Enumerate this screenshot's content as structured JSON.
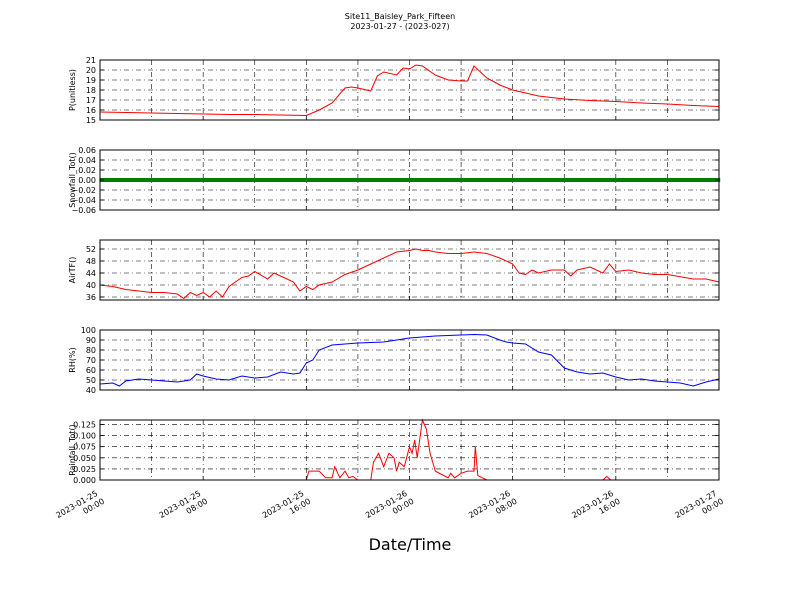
{
  "header": {
    "title": "Site11_Baisley_Park_Fifteen",
    "subtitle": "2023-01-27 - (2023-027)"
  },
  "xlabel": "Date/Time",
  "x_ticks": [
    "2023-01-25 00:00",
    "2023-01-25 08:00",
    "2023-01-25 16:00",
    "2023-01-26 00:00",
    "2023-01-26 08:00",
    "2023-01-26 16:00",
    "2023-01-27 00:00"
  ],
  "chart_data": [
    {
      "type": "line",
      "ylabel": "P(unitless)",
      "color": "#ff0000",
      "xlim_hours": [
        0,
        48
      ],
      "ylim": [
        15,
        21
      ],
      "yticks": [
        "15",
        "16",
        "17",
        "18",
        "19",
        "20",
        "21"
      ],
      "grid": true,
      "x_hours": [
        0,
        2,
        4,
        6,
        8,
        10,
        12,
        14,
        16,
        17,
        18,
        19,
        19.5,
        20,
        21,
        21.5,
        22,
        23,
        23.5,
        24,
        24.5,
        25,
        26,
        27,
        28,
        28.5,
        29,
        30,
        31,
        32,
        33,
        34,
        36,
        38,
        40,
        42,
        44,
        46,
        48
      ],
      "values": [
        15.8,
        15.75,
        15.7,
        15.65,
        15.6,
        15.55,
        15.55,
        15.5,
        15.45,
        16.0,
        16.7,
        18.2,
        18.3,
        18.2,
        17.9,
        19.4,
        19.8,
        19.5,
        20.2,
        20.1,
        20.5,
        20.4,
        19.5,
        19.0,
        18.9,
        18.9,
        20.4,
        19.2,
        18.5,
        18.0,
        17.7,
        17.4,
        17.1,
        16.95,
        16.85,
        16.7,
        16.6,
        16.45,
        16.35
      ]
    },
    {
      "type": "scatter",
      "ylabel": "Snowfall_Tot()",
      "color": "#008000",
      "xlim_hours": [
        0,
        48
      ],
      "ylim": [
        -0.06,
        0.06
      ],
      "yticks": [
        "−0.06",
        "−0.04",
        "−0.02",
        "0.00",
        "0.02",
        "0.04",
        "0.06"
      ],
      "grid": true,
      "x_hours": [
        0,
        48
      ],
      "values": [
        0,
        0
      ],
      "note_series": "constant zero"
    },
    {
      "type": "line",
      "ylabel": "AirTF()",
      "color": "#ff0000",
      "xlim_hours": [
        0,
        48
      ],
      "ylim": [
        35,
        55
      ],
      "yticks": [
        "36",
        "40",
        "44",
        "48",
        "52"
      ],
      "grid": true,
      "x_hours": [
        0,
        1,
        2,
        3,
        4,
        5,
        6,
        6.5,
        7,
        7.5,
        8,
        8.5,
        9,
        9.5,
        10,
        10.5,
        11,
        11.5,
        12,
        13,
        13.5,
        14,
        14.5,
        15,
        15.5,
        16,
        16.5,
        17,
        18,
        19,
        20,
        21,
        22,
        23,
        24,
        24.5,
        25,
        25.5,
        26,
        27,
        28,
        29,
        30,
        31,
        32,
        32.5,
        33,
        33.5,
        34,
        35,
        36,
        36.5,
        37,
        38,
        39,
        39.5,
        40,
        41,
        42,
        43,
        44,
        46,
        47,
        48
      ],
      "values": [
        40,
        39.5,
        38.5,
        38,
        37.5,
        37.5,
        37,
        35.5,
        37.5,
        36.5,
        37.5,
        36,
        38,
        36,
        39.5,
        41,
        42.5,
        43,
        44.5,
        42,
        44,
        43,
        42,
        41,
        38,
        39.5,
        38.5,
        40,
        41,
        43.5,
        45,
        47,
        49,
        51,
        51.5,
        52,
        51.5,
        51.5,
        51,
        50.5,
        50.5,
        51,
        50.5,
        49,
        47,
        44,
        43.5,
        45,
        44,
        45,
        45,
        43,
        45,
        46,
        44,
        47,
        44.5,
        45,
        44,
        43.5,
        43.5,
        42,
        42,
        41
      ]
    },
    {
      "type": "line",
      "ylabel": "RH(%)",
      "color": "#0000ff",
      "xlim_hours": [
        0,
        48
      ],
      "ylim": [
        40,
        100
      ],
      "yticks": [
        "40",
        "50",
        "60",
        "70",
        "80",
        "90",
        "100"
      ],
      "grid": true,
      "x_hours": [
        0,
        1,
        1.5,
        2,
        3,
        4,
        5,
        6,
        7,
        7.5,
        8,
        9,
        10,
        11,
        12,
        13,
        14,
        15,
        15.5,
        16,
        16.5,
        17,
        18,
        19,
        20,
        21,
        22,
        24,
        26,
        28,
        29,
        30,
        31,
        31.5,
        32,
        33,
        34,
        35,
        36,
        37,
        38,
        39,
        40,
        41,
        42,
        43,
        44,
        45,
        46,
        47,
        48
      ],
      "values": [
        46,
        47,
        44,
        49,
        51,
        50,
        49,
        48,
        50,
        56,
        54,
        51,
        50,
        54,
        52,
        53,
        58,
        56,
        57,
        67,
        70,
        80,
        85,
        86,
        87,
        87.5,
        88,
        92,
        94,
        95,
        95.5,
        95,
        90,
        88,
        87,
        86,
        78,
        75,
        62,
        58,
        56,
        57,
        53,
        50,
        51,
        49,
        48,
        47,
        44,
        48,
        51
      ]
    },
    {
      "type": "line",
      "ylabel": "Rainfall_Tot()",
      "color": "#ff0000",
      "xlim_hours": [
        0,
        48
      ],
      "ylim": [
        0,
        0.135
      ],
      "yticks": [
        "0.000",
        "0.025",
        "0.050",
        "0.075",
        "0.100",
        "0.125"
      ],
      "grid": true,
      "x_hours": [
        0,
        16,
        16.2,
        17,
        17.5,
        18,
        18.2,
        18.6,
        19,
        19.3,
        19.6,
        20,
        21,
        21.2,
        21.6,
        22,
        22.4,
        22.8,
        23,
        23.2,
        23.6,
        24,
        24.2,
        24.4,
        24.6,
        25,
        25.3,
        25.6,
        26,
        27,
        27.2,
        27.5,
        28,
        28.5,
        29,
        29.1,
        29.3,
        30,
        39,
        39.3,
        39.6,
        40,
        48
      ],
      "values": [
        0,
        0,
        0.02,
        0.02,
        0.005,
        0.005,
        0.03,
        0.005,
        0.02,
        0.005,
        0.008,
        0,
        0,
        0.04,
        0.06,
        0.03,
        0.06,
        0.05,
        0.02,
        0.04,
        0.03,
        0.075,
        0.06,
        0.09,
        0.05,
        0.135,
        0.115,
        0.06,
        0.02,
        0.005,
        0.015,
        0.005,
        0.015,
        0.02,
        0.02,
        0.075,
        0.01,
        0,
        0,
        0.008,
        0,
        0,
        0
      ]
    }
  ]
}
